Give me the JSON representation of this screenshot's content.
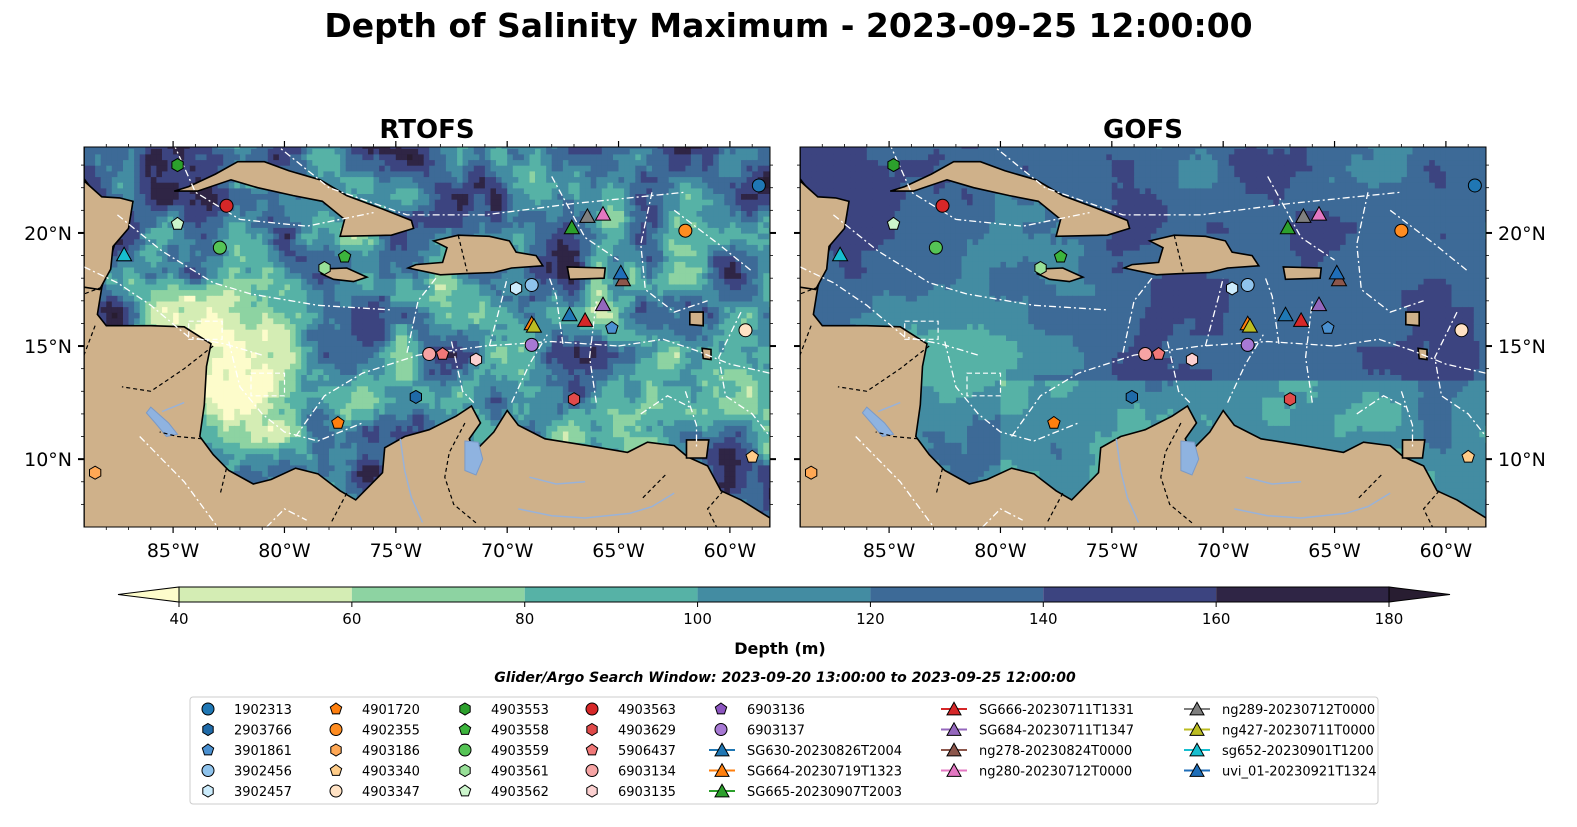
{
  "title": "Depth of Salinity Maximum - 2023-09-25 12:00:00",
  "panels": [
    {
      "title": "RTOFS",
      "field": "deep"
    },
    {
      "title": "GOFS",
      "field": "smooth"
    }
  ],
  "axes": {
    "x_ticks": [
      "85°W",
      "80°W",
      "75°W",
      "70°W",
      "65°W",
      "60°W"
    ],
    "x_tick_values": [
      -85,
      -80,
      -75,
      -70,
      -65,
      -60
    ],
    "y_ticks": [
      "20°N",
      "15°N",
      "10°N"
    ],
    "y_tick_values": [
      20,
      15,
      10
    ],
    "lon_range": [
      -89,
      -58.2
    ],
    "lat_range": [
      7,
      23.8
    ]
  },
  "colorbar": {
    "label": "Depth (m)",
    "ticks": [
      "40",
      "60",
      "80",
      "100",
      "120",
      "140",
      "160",
      "180"
    ],
    "tick_values": [
      40,
      60,
      80,
      100,
      120,
      140,
      160,
      180
    ],
    "extend": "both",
    "colors": [
      "#fdfccb",
      "#d4edb4",
      "#8dd3a2",
      "#56b2a6",
      "#438ca2",
      "#3d6a97",
      "#3c4480",
      "#2f2545",
      "#281d31"
    ]
  },
  "subtitle": "Glider/Argo Search Window: 2023-09-20 13:00:00 to 2023-09-25 12:00:00",
  "colors": {
    "land": "#cfb18a",
    "lake": "#8fb3e0",
    "river": "#99b2d8"
  },
  "legend": {
    "argo": [
      {
        "label": "1902313",
        "marker": "circle",
        "color": "#1f77b4",
        "lon": -58.7,
        "lat": 22.1
      },
      {
        "label": "2903766",
        "marker": "hexagon",
        "color": "#1f6aa8",
        "lon": -74.1,
        "lat": 12.75
      },
      {
        "label": "3901861",
        "marker": "pentagon",
        "color": "#4a90d0",
        "lon": -65.3,
        "lat": 15.8
      },
      {
        "label": "3902456",
        "marker": "circle",
        "color": "#8fc3ec",
        "lon": -68.9,
        "lat": 17.7
      },
      {
        "label": "3902457",
        "marker": "hexagon",
        "color": "#ccecfc",
        "lon": -69.6,
        "lat": 17.55
      },
      {
        "label": "4901720",
        "marker": "pentagon",
        "color": "#ff7f0e",
        "lon": -77.6,
        "lat": 11.6
      },
      {
        "label": "4902355",
        "marker": "circle",
        "color": "#ff8c20",
        "lon": -62.0,
        "lat": 20.1
      },
      {
        "label": "4903186",
        "marker": "hexagon",
        "color": "#ffa855",
        "lon": -88.5,
        "lat": 9.4
      },
      {
        "label": "4903340",
        "marker": "pentagon",
        "color": "#ffcc88",
        "lon": -59.0,
        "lat": 10.1
      },
      {
        "label": "4903347",
        "marker": "circle",
        "color": "#ffe2c4",
        "lon": -59.3,
        "lat": 15.7
      },
      {
        "label": "4903553",
        "marker": "hexagon",
        "color": "#2ca02c",
        "lon": -84.8,
        "lat": 23.0
      },
      {
        "label": "4903558",
        "marker": "pentagon",
        "color": "#3cb43c",
        "lon": -77.3,
        "lat": 18.95
      },
      {
        "label": "4903559",
        "marker": "circle",
        "color": "#55c455",
        "lon": -82.9,
        "lat": 19.35
      },
      {
        "label": "4903561",
        "marker": "hexagon",
        "color": "#98e098",
        "lon": -78.2,
        "lat": 18.45
      },
      {
        "label": "4903562",
        "marker": "pentagon",
        "color": "#ccf5cc",
        "lon": -84.8,
        "lat": 20.4
      },
      {
        "label": "4903563",
        "marker": "circle",
        "color": "#d62728",
        "lon": -82.6,
        "lat": 21.2
      },
      {
        "label": "4903629",
        "marker": "hexagon",
        "color": "#e04a4a",
        "lon": -67.0,
        "lat": 12.65
      },
      {
        "label": "5906437",
        "marker": "pentagon",
        "color": "#f07878",
        "lon": -72.9,
        "lat": 14.65
      },
      {
        "label": "6903134",
        "marker": "circle",
        "color": "#f6a4a4",
        "lon": -73.5,
        "lat": 14.65
      },
      {
        "label": "6903135",
        "marker": "hexagon",
        "color": "#fbd0d0",
        "lon": -71.4,
        "lat": 14.4
      },
      {
        "label": "6903136",
        "marker": "pentagon",
        "color": "#8c55c0",
        "lon": null,
        "lat": null
      },
      {
        "label": "6903137",
        "marker": "circle",
        "color": "#a779d4",
        "lon": -68.9,
        "lat": 15.05
      }
    ],
    "gliders": [
      {
        "label": "SG630-20230826T2004",
        "color": "#1f77b4",
        "lon": -67.2,
        "lat": 16.35
      },
      {
        "label": "SG664-20230719T1323",
        "color": "#ff7f0e",
        "lon": -68.9,
        "lat": 15.95
      },
      {
        "label": "SG665-20230907T2003",
        "color": "#2ca02c",
        "lon": -67.1,
        "lat": 20.2
      },
      {
        "label": "SG666-20230711T1331",
        "color": "#d62728",
        "lon": -66.5,
        "lat": 16.1
      },
      {
        "label": "SG684-20230711T1347",
        "color": "#9467bd",
        "lon": -65.7,
        "lat": 16.8
      },
      {
        "label": "ng278-20230824T0000",
        "color": "#8c564b",
        "lon": -64.8,
        "lat": 17.9
      },
      {
        "label": "ng280-20230712T0000",
        "color": "#e377c2",
        "lon": -65.7,
        "lat": 20.8
      },
      {
        "label": "ng289-20230712T0000",
        "color": "#7f7f7f",
        "lon": -66.4,
        "lat": 20.7
      },
      {
        "label": "ng427-20230711T0000",
        "color": "#bcbd22",
        "lon": -68.8,
        "lat": 15.85
      },
      {
        "label": "sg652-20230901T1200",
        "color": "#17becf",
        "lon": -87.2,
        "lat": 19.0
      },
      {
        "label": "uvi_01-20230921T1324",
        "color": "#1f6eb8",
        "lon": -64.9,
        "lat": 18.2
      }
    ]
  }
}
